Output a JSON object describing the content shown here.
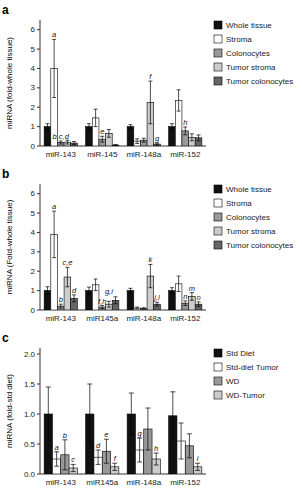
{
  "chart_data": [
    {
      "type": "bar",
      "title": "a",
      "y_label": "miRNA (fold-whole tissue)",
      "categories": [
        "miR-143",
        "miR-145",
        "miR-148a",
        "miR-152"
      ],
      "ylim": [
        0,
        6.5
      ],
      "yticks": [
        0,
        1,
        2,
        3,
        4,
        5,
        6
      ],
      "grid": false,
      "legend": "right",
      "series": [
        {
          "name": "Whole tissue",
          "color": "#111111",
          "values": [
            1.0,
            1.0,
            1.0,
            1.0
          ],
          "errors": [
            0.15,
            0.15,
            0.1,
            0.15
          ]
        },
        {
          "name": "Stroma",
          "color": "#ffffff",
          "values": [
            4.0,
            1.45,
            0.25,
            2.35
          ],
          "errors": [
            1.5,
            0.45,
            0.12,
            0.55
          ]
        },
        {
          "name": "Colonocytes",
          "color": "#999999",
          "values": [
            0.18,
            0.35,
            0.3,
            0.78
          ],
          "errors": [
            0.08,
            0.15,
            0.1,
            0.2
          ]
        },
        {
          "name": "Tumor stroma",
          "color": "#cccccc",
          "values": [
            0.2,
            0.65,
            2.25,
            0.45
          ],
          "errors": [
            0.1,
            0.2,
            1.1,
            0.18
          ]
        },
        {
          "name": "Tumor colonocytes",
          "color": "#666666",
          "values": [
            0.15,
            0.05,
            0.1,
            0.42
          ],
          "errors": [
            0.08,
            0.03,
            0.06,
            0.15
          ]
        }
      ],
      "annotations": [
        {
          "text": "a",
          "category": 0,
          "series": 1
        },
        {
          "text": "b,c,d",
          "category": 0,
          "series": 2
        },
        {
          "text": "e",
          "category": 1,
          "series": 2
        },
        {
          "text": "f",
          "category": 2,
          "series": 3
        },
        {
          "text": "g",
          "category": 2,
          "series": 4
        },
        {
          "text": "h",
          "category": 3,
          "series": 2
        }
      ]
    },
    {
      "type": "bar",
      "title": "b",
      "y_label": "miRNA (Fold-whole tissue)",
      "categories": [
        "miR-143",
        "miR145a",
        "miR-148a",
        "miR-152"
      ],
      "ylim": [
        0,
        6.5
      ],
      "yticks": [
        0,
        1,
        2,
        3,
        4,
        5,
        6
      ],
      "grid": false,
      "legend": "right",
      "series": [
        {
          "name": "Whole tissue",
          "color": "#111111",
          "values": [
            1.0,
            1.0,
            1.0,
            1.0
          ],
          "errors": [
            0.2,
            0.18,
            0.12,
            0.15
          ]
        },
        {
          "name": "Stroma",
          "color": "#ffffff",
          "values": [
            3.9,
            1.3,
            0.1,
            1.35
          ],
          "errors": [
            1.2,
            0.3,
            0.05,
            0.4
          ]
        },
        {
          "name": "Colonocytes",
          "color": "#999999",
          "values": [
            0.2,
            0.15,
            0.08,
            0.35
          ],
          "errors": [
            0.1,
            0.08,
            0.04,
            0.12
          ]
        },
        {
          "name": "Tumor stroma",
          "color": "#cccccc",
          "values": [
            1.7,
            0.3,
            1.75,
            0.7
          ],
          "errors": [
            0.5,
            0.15,
            0.6,
            0.2
          ]
        },
        {
          "name": "Tumor colonocytes",
          "color": "#666666",
          "values": [
            0.6,
            0.5,
            0.3,
            0.3
          ],
          "errors": [
            0.18,
            0.18,
            0.1,
            0.12
          ]
        }
      ],
      "annotations": [
        {
          "text": "a",
          "category": 0,
          "series": 1
        },
        {
          "text": "b",
          "category": 0,
          "series": 2
        },
        {
          "text": "c,e",
          "category": 0,
          "series": 3
        },
        {
          "text": "d",
          "category": 0,
          "series": 4
        },
        {
          "text": "f,h",
          "category": 1,
          "series": 2
        },
        {
          "text": "g,i",
          "category": 1,
          "series": 3
        },
        {
          "text": "k",
          "category": 2,
          "series": 3
        },
        {
          "text": "j,l",
          "category": 2,
          "series": 4
        },
        {
          "text": "m",
          "category": 3,
          "series": 3
        },
        {
          "text": "n",
          "category": 3,
          "series": 2
        },
        {
          "text": "o",
          "category": 3,
          "series": 4
        }
      ]
    },
    {
      "type": "bar",
      "title": "c",
      "y_label": "miRNA (fold-std diet)",
      "categories": [
        "miR-143",
        "miR145a",
        "miR-148a",
        "miR-152"
      ],
      "ylim": [
        0,
        2.1
      ],
      "yticks": [
        {
          "value": 0.0,
          "label": "0.0"
        },
        0.5,
        {
          "value": 1.0,
          "label": "1.0"
        },
        1.5,
        {
          "value": 2.0,
          "label": "2.0"
        }
      ],
      "grid": false,
      "legend": "right",
      "series": [
        {
          "name": "Std Diet",
          "color": "#111111",
          "values": [
            1.0,
            1.0,
            1.0,
            0.97
          ],
          "errors": [
            0.45,
            0.5,
            0.35,
            0.4
          ]
        },
        {
          "name": "Std-diet Tumor",
          "color": "#ffffff",
          "values": [
            0.25,
            0.28,
            0.4,
            0.55
          ],
          "errors": [
            0.12,
            0.12,
            0.2,
            0.3
          ]
        },
        {
          "name": "WD",
          "color": "#999999",
          "values": [
            0.32,
            0.38,
            0.75,
            0.47
          ],
          "errors": [
            0.25,
            0.2,
            0.35,
            0.2
          ]
        },
        {
          "name": "WD-Tumor",
          "color": "#cccccc",
          "values": [
            0.1,
            0.12,
            0.25,
            0.12
          ],
          "errors": [
            0.06,
            0.06,
            0.1,
            0.06
          ]
        }
      ],
      "annotations": [
        {
          "text": "a",
          "category": 0,
          "series": 1
        },
        {
          "text": "b",
          "category": 0,
          "series": 2
        },
        {
          "text": "c",
          "category": 0,
          "series": 3
        },
        {
          "text": "d",
          "category": 1,
          "series": 1
        },
        {
          "text": "e",
          "category": 1,
          "series": 2
        },
        {
          "text": "f",
          "category": 1,
          "series": 3
        },
        {
          "text": "g",
          "category": 2,
          "series": 1
        },
        {
          "text": "h",
          "category": 2,
          "series": 3
        },
        {
          "text": "i",
          "category": 3,
          "series": 3
        }
      ]
    }
  ]
}
